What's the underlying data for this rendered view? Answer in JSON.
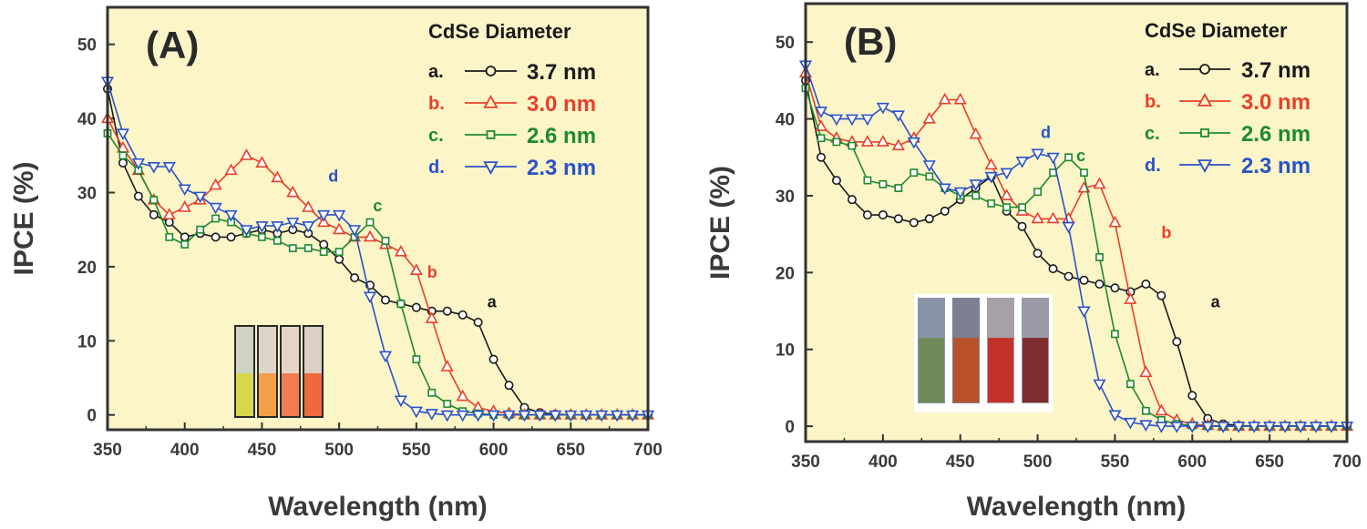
{
  "chart_data": [
    {
      "type": "line",
      "panel_label": "(A)",
      "xlabel": "Wavelength (nm)",
      "ylabel": "IPCE (%)",
      "xlim": [
        350,
        700
      ],
      "ylim": [
        -2,
        55
      ],
      "xticks": [
        350,
        400,
        450,
        500,
        550,
        600,
        650,
        700
      ],
      "yticks": [
        0,
        10,
        20,
        30,
        40,
        50
      ],
      "legend_title": "CdSe Diameter",
      "legend_position": "top-right",
      "inset": "photo of four vials of CdSe solutions (yellow, orange, orange-red, red-orange)",
      "series": [
        {
          "letter": "a.",
          "name": "3.7 nm",
          "color": "#1a1a1a",
          "marker": "circle",
          "annotation": "a",
          "x": [
            350,
            360,
            370,
            380,
            390,
            400,
            410,
            420,
            430,
            440,
            450,
            460,
            470,
            480,
            490,
            500,
            510,
            520,
            530,
            540,
            550,
            560,
            570,
            580,
            590,
            600,
            610,
            620,
            630,
            640,
            650,
            660,
            670,
            680,
            690,
            700
          ],
          "y": [
            44,
            34,
            29.5,
            27,
            26,
            24,
            24.5,
            24,
            24,
            24.5,
            25,
            24.5,
            25,
            24.5,
            23,
            21,
            18.5,
            17.5,
            15.5,
            15,
            14.5,
            14,
            14,
            13.5,
            12.5,
            7.5,
            4,
            1,
            0.3,
            0.1,
            0,
            0,
            0,
            0,
            0,
            0
          ]
        },
        {
          "letter": "b.",
          "name": "3.0 nm",
          "color": "#e8402a",
          "marker": "triangle-up",
          "annotation": "b",
          "x": [
            350,
            360,
            370,
            380,
            390,
            400,
            410,
            420,
            430,
            440,
            450,
            460,
            470,
            480,
            490,
            500,
            510,
            520,
            530,
            540,
            550,
            560,
            570,
            580,
            590,
            600,
            610,
            620,
            630,
            640,
            650,
            660,
            670,
            680,
            690,
            700
          ],
          "y": [
            40,
            36,
            33,
            29,
            27,
            28,
            29,
            31,
            33,
            35,
            34,
            32,
            30,
            28,
            26,
            25,
            24,
            24,
            23,
            22,
            19.5,
            13,
            6.5,
            2.5,
            1,
            0.5,
            0.2,
            0,
            0,
            0,
            0,
            0,
            0,
            0,
            0,
            0
          ]
        },
        {
          "letter": "c.",
          "name": "2.6 nm",
          "color": "#1e8a2e",
          "marker": "square",
          "annotation": "c",
          "x": [
            350,
            360,
            370,
            380,
            390,
            400,
            410,
            420,
            430,
            440,
            450,
            460,
            470,
            480,
            490,
            500,
            510,
            520,
            530,
            540,
            550,
            560,
            570,
            580,
            590,
            600,
            610,
            620,
            630,
            640,
            650,
            660,
            670,
            680,
            690,
            700
          ],
          "y": [
            38,
            35,
            33,
            29,
            24,
            23,
            25,
            26.5,
            26,
            24.5,
            24,
            23.5,
            22.5,
            22.5,
            22,
            22,
            24,
            26,
            23.5,
            15,
            7.5,
            3,
            1.5,
            0.5,
            0.2,
            0,
            0,
            0,
            0,
            0,
            0,
            0,
            0,
            0,
            0,
            0
          ]
        },
        {
          "letter": "d.",
          "name": "2.3 nm",
          "color": "#2a52c8",
          "marker": "triangle-down",
          "annotation": "d",
          "x": [
            350,
            360,
            370,
            380,
            390,
            400,
            410,
            420,
            430,
            440,
            450,
            460,
            470,
            480,
            490,
            500,
            510,
            520,
            530,
            540,
            550,
            560,
            570,
            580,
            590,
            600,
            610,
            620,
            630,
            640,
            650,
            660,
            670,
            680,
            690,
            700
          ],
          "y": [
            45,
            38,
            34,
            33.5,
            33.5,
            30.5,
            29.5,
            28,
            27,
            25,
            25.5,
            25.5,
            26,
            25.5,
            27,
            27,
            25,
            16,
            8,
            2,
            0.5,
            0.2,
            0,
            0,
            0,
            0,
            0,
            0,
            0,
            0,
            0,
            0,
            0,
            0,
            0,
            0
          ]
        }
      ]
    },
    {
      "type": "line",
      "panel_label": "(B)",
      "xlabel": "Wavelength (nm)",
      "ylabel": "IPCE (%)",
      "xlim": [
        350,
        700
      ],
      "ylim": [
        -2,
        55
      ],
      "xticks": [
        350,
        400,
        450,
        500,
        550,
        600,
        650,
        700
      ],
      "yticks": [
        0,
        10,
        20,
        30,
        40,
        50
      ],
      "legend_title": "CdSe Diameter",
      "legend_position": "top-right",
      "inset": "photo of four film electrodes (greenish, brown-red, red, dark red)",
      "series": [
        {
          "letter": "a.",
          "name": "3.7 nm",
          "color": "#1a1a1a",
          "marker": "circle",
          "annotation": "a",
          "x": [
            350,
            360,
            370,
            380,
            390,
            400,
            410,
            420,
            430,
            440,
            450,
            460,
            470,
            480,
            490,
            500,
            510,
            520,
            530,
            540,
            550,
            560,
            570,
            580,
            590,
            600,
            610,
            620,
            630,
            640,
            650,
            660,
            670,
            680,
            690,
            700
          ],
          "y": [
            45,
            35,
            32,
            29.5,
            27.5,
            27.5,
            27,
            26.5,
            27,
            28,
            29.5,
            31,
            32.5,
            28,
            26,
            22.5,
            20.5,
            19.5,
            19,
            18.5,
            18,
            17.5,
            18.5,
            17,
            11,
            4,
            1,
            0.3,
            0.1,
            0,
            0,
            0,
            0,
            0,
            0,
            0
          ]
        },
        {
          "letter": "b.",
          "name": "3.0 nm",
          "color": "#e8402a",
          "marker": "triangle-up",
          "annotation": "b",
          "x": [
            350,
            360,
            370,
            380,
            390,
            400,
            410,
            420,
            430,
            440,
            450,
            460,
            470,
            480,
            490,
            500,
            510,
            520,
            530,
            540,
            550,
            560,
            570,
            580,
            590,
            600,
            610,
            620,
            630,
            640,
            650,
            660,
            670,
            680,
            690,
            700
          ],
          "y": [
            46,
            39,
            37.5,
            37,
            37,
            37,
            36.5,
            37.5,
            40,
            42.5,
            42.5,
            38,
            34,
            30,
            28,
            27,
            27,
            27,
            31,
            31.5,
            26.5,
            16.5,
            7,
            2,
            0.8,
            0.3,
            0.1,
            0,
            0,
            0,
            0,
            0,
            0,
            0,
            0,
            0
          ]
        },
        {
          "letter": "c.",
          "name": "2.6 nm",
          "color": "#1e8a2e",
          "marker": "square",
          "annotation": "c",
          "x": [
            350,
            360,
            370,
            380,
            390,
            400,
            410,
            420,
            430,
            440,
            450,
            460,
            470,
            480,
            490,
            500,
            510,
            520,
            530,
            540,
            550,
            560,
            570,
            580,
            590,
            600,
            610,
            620,
            630,
            640,
            650,
            660,
            670,
            680,
            690,
            700
          ],
          "y": [
            44,
            37.5,
            37,
            36.5,
            32,
            31.5,
            31,
            33,
            32.5,
            31,
            30,
            30,
            29,
            28.5,
            28.5,
            30.5,
            33,
            35,
            33,
            22,
            12,
            5.5,
            2,
            0.8,
            0.3,
            0.1,
            0,
            0,
            0,
            0,
            0,
            0,
            0,
            0,
            0,
            0
          ]
        },
        {
          "letter": "d.",
          "name": "2.3 nm",
          "color": "#2a52c8",
          "marker": "triangle-down",
          "annotation": "d",
          "x": [
            350,
            360,
            370,
            380,
            390,
            400,
            410,
            420,
            430,
            440,
            450,
            460,
            470,
            480,
            490,
            500,
            510,
            520,
            530,
            540,
            550,
            560,
            570,
            580,
            590,
            600,
            610,
            620,
            630,
            640,
            650,
            660,
            670,
            680,
            690,
            700
          ],
          "y": [
            47,
            41,
            40,
            40,
            40,
            41.5,
            40.5,
            37,
            34,
            31,
            30.5,
            31.5,
            32.5,
            33,
            34.5,
            35.5,
            35,
            26,
            15,
            5.5,
            1.5,
            0.5,
            0.2,
            0,
            0,
            0,
            0,
            0,
            0,
            0,
            0,
            0,
            0,
            0,
            0,
            0
          ]
        }
      ]
    }
  ]
}
